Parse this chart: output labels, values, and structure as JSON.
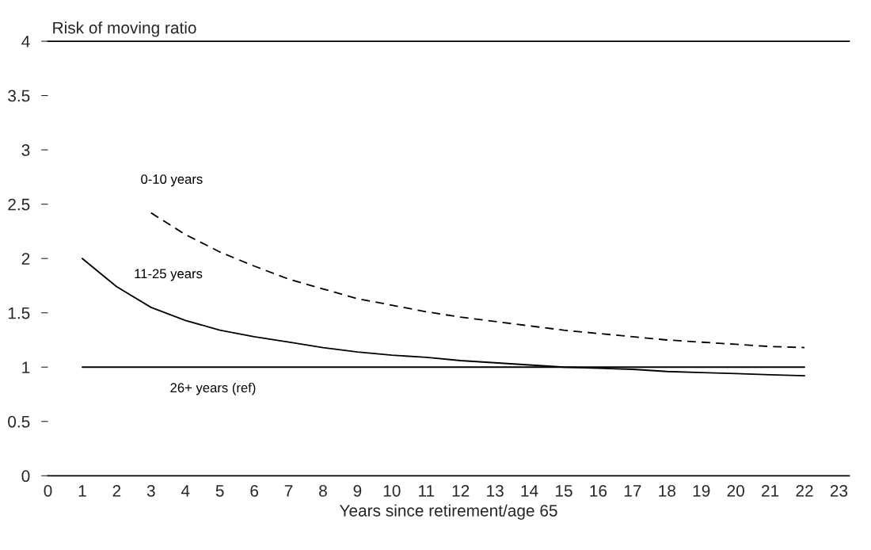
{
  "chart_data": {
    "type": "line",
    "ylabel": "Risk of moving ratio",
    "xlabel": "Years since retirement/age 65",
    "xlim": [
      0,
      23.3
    ],
    "xticks": [
      0,
      1,
      2,
      3,
      4,
      5,
      6,
      7,
      8,
      9,
      10,
      11,
      12,
      13,
      14,
      15,
      16,
      17,
      18,
      19,
      20,
      21,
      22,
      23
    ],
    "ylim": [
      0,
      4
    ],
    "yticks": [
      0,
      0.5,
      1,
      1.5,
      2,
      2.5,
      3,
      3.5,
      4
    ],
    "grid": false,
    "marker": "none",
    "series": [
      {
        "name": "0-10 years",
        "color": "#000000",
        "line_style": "dashed",
        "x": [
          3,
          4,
          5,
          6,
          7,
          8,
          9,
          10,
          11,
          12,
          13,
          14,
          15,
          16,
          17,
          18,
          19,
          20,
          21,
          22
        ],
        "values": [
          2.42,
          2.22,
          2.06,
          1.93,
          1.81,
          1.72,
          1.63,
          1.57,
          1.51,
          1.46,
          1.42,
          1.38,
          1.34,
          1.31,
          1.28,
          1.25,
          1.23,
          1.21,
          1.19,
          1.18
        ]
      },
      {
        "name": "11-25 years",
        "color": "#000000",
        "line_style": "solid",
        "x": [
          1,
          2,
          3,
          4,
          5,
          6,
          7,
          8,
          9,
          10,
          11,
          12,
          13,
          14,
          15,
          16,
          17,
          18,
          19,
          20,
          21,
          22
        ],
        "values": [
          2.0,
          1.74,
          1.55,
          1.43,
          1.34,
          1.28,
          1.23,
          1.18,
          1.14,
          1.11,
          1.09,
          1.06,
          1.04,
          1.02,
          1.0,
          0.99,
          0.98,
          0.96,
          0.95,
          0.94,
          0.93,
          0.92
        ]
      },
      {
        "name": "26+ years (ref)",
        "color": "#000000",
        "line_style": "solid",
        "x": [
          1,
          22
        ],
        "values": [
          1,
          1
        ]
      }
    ]
  }
}
